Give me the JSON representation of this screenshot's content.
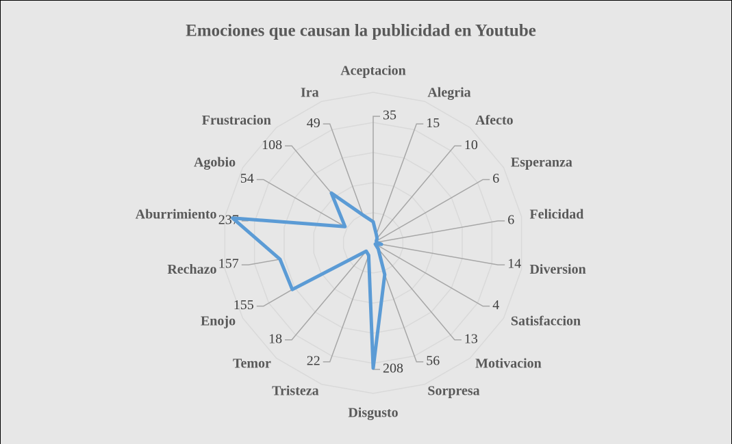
{
  "chart_data": {
    "type": "radar",
    "title": "Emociones que causan la publicidad en Youtube",
    "categories": [
      "Aceptacion",
      "Alegria",
      "Afecto",
      "Esperanza",
      "Felicidad",
      "Diversion",
      "Satisfaccion",
      "Motivacion",
      "Sorpresa",
      "Disgusto",
      "Tristeza",
      "Temor",
      "Enojo",
      "Rechazo",
      "Aburrimiento",
      "Agobio",
      "Frustracion",
      "Ira"
    ],
    "values": [
      35,
      15,
      10,
      6,
      6,
      14,
      4,
      13,
      56,
      208,
      22,
      18,
      155,
      157,
      237,
      54,
      108,
      49
    ],
    "color": "#5b9bd5",
    "rlim": [
      0,
      250
    ],
    "rticks": [
      0,
      50,
      100,
      150,
      200,
      250
    ],
    "grid": true
  }
}
